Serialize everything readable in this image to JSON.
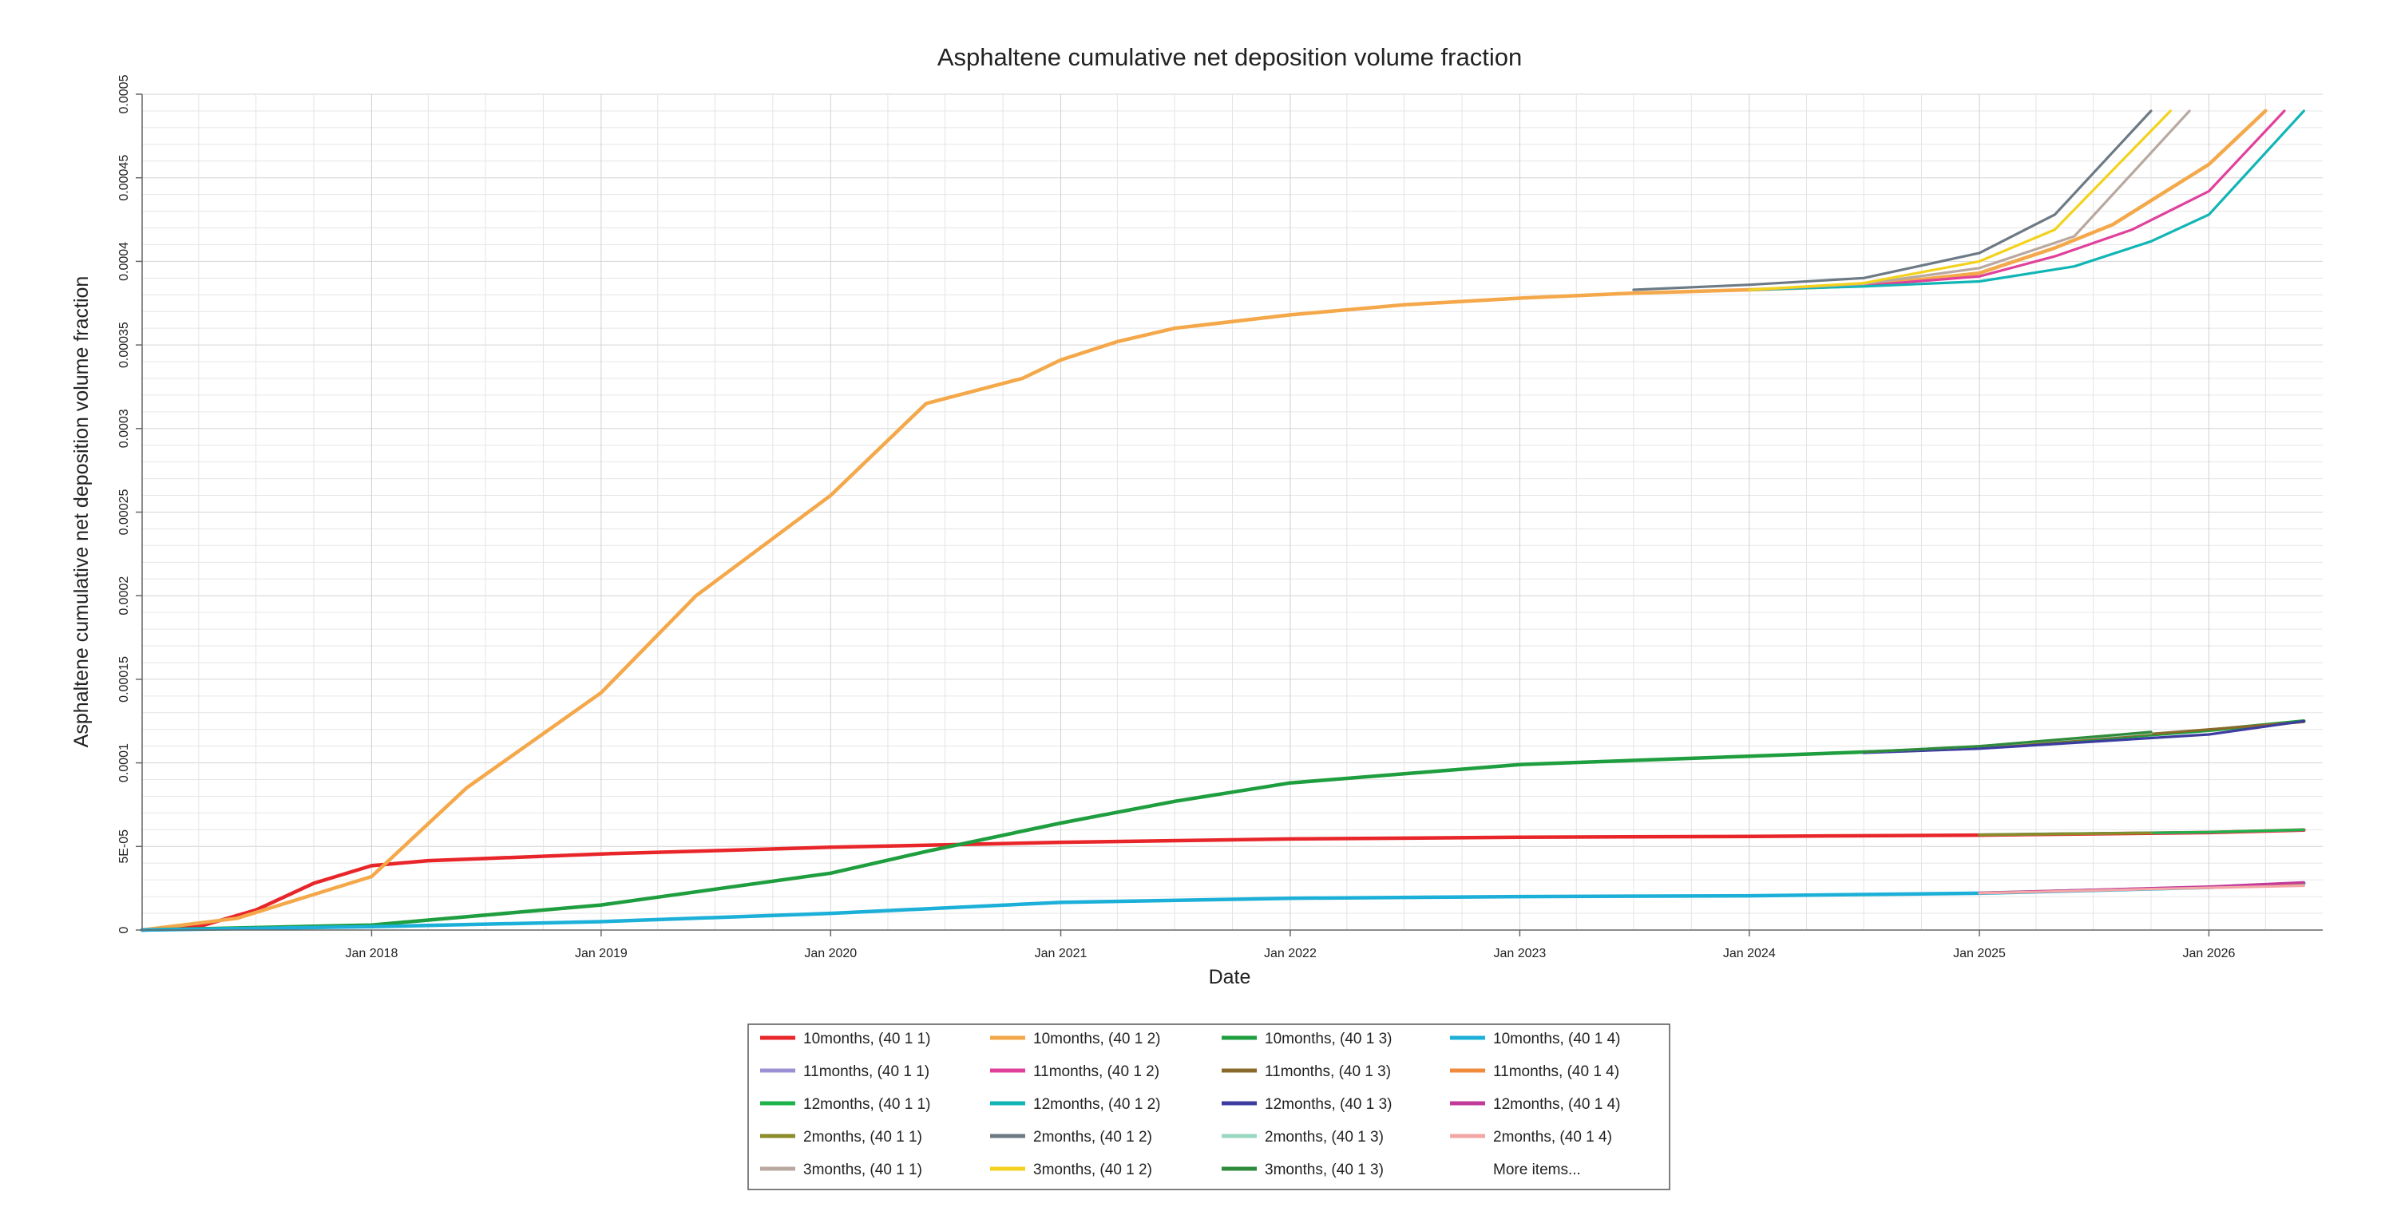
{
  "chart_data": {
    "type": "line",
    "title": "Asphaltene cumulative net deposition volume fraction",
    "xlabel": "Date",
    "ylabel": "Asphaltene cumulative net deposition volume fraction",
    "xlim": [
      "2017-01-01",
      "2026-07-01"
    ],
    "ylim": [
      0,
      0.0005
    ],
    "x_ticks": [
      "Jan 2018",
      "Jan 2019",
      "Jan 2020",
      "Jan 2021",
      "Jan 2022",
      "Jan 2023",
      "Jan 2024",
      "Jan 2025",
      "Jan 2026"
    ],
    "x_tick_dates": [
      "2018-01-01",
      "2019-01-01",
      "2020-01-01",
      "2021-01-01",
      "2022-01-01",
      "2023-01-01",
      "2024-01-01",
      "2025-01-01",
      "2026-01-01"
    ],
    "y_ticks": [
      {
        "value": 0,
        "label": "0"
      },
      {
        "value": 5e-05,
        "label": "5E-05"
      },
      {
        "value": 0.0001,
        "label": "0.0001"
      },
      {
        "value": 0.00015,
        "label": "0.00015"
      },
      {
        "value": 0.0002,
        "label": "0.0002"
      },
      {
        "value": 0.00025,
        "label": "0.00025"
      },
      {
        "value": 0.0003,
        "label": "0.0003"
      },
      {
        "value": 0.00035,
        "label": "0.00035"
      },
      {
        "value": 0.0004,
        "label": "0.0004"
      },
      {
        "value": 0.00045,
        "label": "0.00045"
      },
      {
        "value": 0.0005,
        "label": "0.0005"
      }
    ],
    "grid": true,
    "legend_position": "bottom",
    "legend_more_label": "More items...",
    "series": [
      {
        "name": "10months, (40 1 1)",
        "color": "#e8262a",
        "x": [
          "2017-01-01",
          "2017-04-01",
          "2017-07-01",
          "2017-10-01",
          "2018-01-01",
          "2018-04-01",
          "2018-07-01",
          "2019-01-01",
          "2020-01-01",
          "2021-01-01",
          "2022-01-01",
          "2023-01-01",
          "2024-01-01",
          "2025-01-01",
          "2026-01-01",
          "2026-06-01"
        ],
        "y": [
          0,
          2e-06,
          1.2e-05,
          2.8e-05,
          3.85e-05,
          4.15e-05,
          4.28e-05,
          4.55e-05,
          4.95e-05,
          5.25e-05,
          5.45e-05,
          5.55e-05,
          5.6e-05,
          5.68e-05,
          5.83e-05,
          5.98e-05
        ]
      },
      {
        "name": "10months, (40 1 2)",
        "color": "#f4a84a",
        "x": [
          "2017-01-01",
          "2017-06-01",
          "2018-01-01",
          "2018-06-01",
          "2019-01-01",
          "2019-06-01",
          "2020-01-01",
          "2020-06-01",
          "2020-11-01",
          "2021-01-01",
          "2021-04-01",
          "2021-07-01",
          "2022-01-01",
          "2022-07-01",
          "2023-01-01",
          "2023-07-01",
          "2024-01-01",
          "2024-07-01",
          "2025-01-01",
          "2025-05-01",
          "2025-08-01",
          "2026-01-01",
          "2026-04-01"
        ],
        "y": [
          0,
          7e-06,
          3.2e-05,
          8.5e-05,
          0.000142,
          0.0002,
          0.00026,
          0.000315,
          0.00033,
          0.000341,
          0.000352,
          0.00036,
          0.000368,
          0.000374,
          0.000378,
          0.000381,
          0.000383,
          0.0003855,
          0.000393,
          0.000408,
          0.000422,
          0.000458,
          0.00049
        ]
      },
      {
        "name": "10months, (40 1 3)",
        "color": "#1e9e3e",
        "x": [
          "2017-01-01",
          "2018-01-01",
          "2019-01-01",
          "2020-01-01",
          "2020-06-01",
          "2021-01-01",
          "2021-07-01",
          "2022-01-01",
          "2023-01-01",
          "2024-01-01",
          "2024-07-01",
          "2025-01-01",
          "2026-01-01",
          "2026-06-01"
        ],
        "y": [
          0,
          3e-06,
          1.5e-05,
          3.4e-05,
          4.7e-05,
          6.4e-05,
          7.7e-05,
          8.8e-05,
          9.9e-05,
          0.000104,
          0.0001065,
          0.000109,
          0.0001195,
          0.000125
        ]
      },
      {
        "name": "10months, (40 1 4)",
        "color": "#1cb0d9",
        "x": [
          "2017-01-01",
          "2018-01-01",
          "2019-01-01",
          "2020-01-01",
          "2021-01-01",
          "2022-01-01",
          "2023-01-01",
          "2024-01-01",
          "2025-01-01",
          "2026-01-01",
          "2026-06-01"
        ],
        "y": [
          0,
          2e-06,
          5e-06,
          1e-05,
          1.65e-05,
          1.9e-05,
          2e-05,
          2.05e-05,
          2.2e-05,
          2.55e-05,
          2.8e-05
        ]
      },
      {
        "name": "11months, (40 1 1)",
        "color": "#9b8fd6",
        "x": [
          "2025-01-01",
          "2026-01-01",
          "2026-06-01"
        ],
        "y": [
          5.69e-05,
          5.85e-05,
          5.99e-05
        ]
      },
      {
        "name": "11months, (40 1 2)",
        "color": "#e0409b",
        "x": [
          "2024-01-01",
          "2024-07-01",
          "2025-01-01",
          "2025-05-01",
          "2025-09-01",
          "2026-01-01",
          "2026-05-01"
        ],
        "y": [
          0.000383,
          0.0003855,
          0.000391,
          0.000403,
          0.000419,
          0.000442,
          0.00049
        ]
      },
      {
        "name": "11months, (40 1 3)",
        "color": "#8a6a2a",
        "x": [
          "2024-07-01",
          "2025-01-01",
          "2026-01-01",
          "2026-06-01"
        ],
        "y": [
          0.0001065,
          0.0001095,
          0.00012,
          0.0001245
        ]
      },
      {
        "name": "11months, (40 1 4)",
        "color": "#f08a3c",
        "x": [
          "2025-01-01",
          "2026-01-01",
          "2026-06-01"
        ],
        "y": [
          2.22e-05,
          2.58e-05,
          2.82e-05
        ]
      },
      {
        "name": "12months, (40 1 1)",
        "color": "#1db34a",
        "x": [
          "2025-01-01",
          "2026-01-01",
          "2026-06-01"
        ],
        "y": [
          5.7e-05,
          5.86e-05,
          6e-05
        ]
      },
      {
        "name": "12months, (40 1 2)",
        "color": "#11b5b5",
        "x": [
          "2024-01-01",
          "2024-07-01",
          "2025-01-01",
          "2025-06-01",
          "2025-10-01",
          "2026-01-01",
          "2026-06-01"
        ],
        "y": [
          0.000383,
          0.000385,
          0.000388,
          0.000397,
          0.000412,
          0.000428,
          0.00049
        ]
      },
      {
        "name": "12months, (40 1 3)",
        "color": "#3c3ca0",
        "x": [
          "2024-07-01",
          "2025-01-01",
          "2026-01-01",
          "2026-06-01"
        ],
        "y": [
          0.000106,
          0.0001085,
          0.000117,
          0.000125
        ]
      },
      {
        "name": "12months, (40 1 4)",
        "color": "#c23a9a",
        "x": [
          "2025-01-01",
          "2026-01-01",
          "2026-06-01"
        ],
        "y": [
          2.22e-05,
          2.6e-05,
          2.85e-05
        ]
      },
      {
        "name": "2months, (40 1 1)",
        "color": "#8c8c2a",
        "x": [
          "2025-01-01",
          "2025-10-01"
        ],
        "y": [
          5.69e-05,
          5.8e-05
        ]
      },
      {
        "name": "2months, (40 1 2)",
        "color": "#6c7a85",
        "x": [
          "2023-07-01",
          "2024-01-01",
          "2024-07-01",
          "2025-01-01",
          "2025-05-01",
          "2025-10-01"
        ],
        "y": [
          0.000383,
          0.000386,
          0.00039,
          0.000405,
          0.000428,
          0.00049
        ]
      },
      {
        "name": "2months, (40 1 3)",
        "color": "#9ad9c0",
        "x": [
          "2024-07-01",
          "2025-01-01",
          "2025-10-01"
        ],
        "y": [
          0.0001065,
          0.00011,
          0.000118
        ]
      },
      {
        "name": "2months, (40 1 4)",
        "color": "#f4a6a6",
        "x": [
          "2025-01-01",
          "2025-10-01",
          "2026-06-01"
        ],
        "y": [
          2.2e-05,
          2.45e-05,
          2.65e-05
        ]
      },
      {
        "name": "3months, (40 1 1)",
        "color": "#b8a8a0",
        "x": [
          "2024-01-01",
          "2024-07-01",
          "2025-01-01",
          "2025-06-01",
          "2025-12-01"
        ],
        "y": [
          0.000383,
          0.0003865,
          0.000396,
          0.000415,
          0.00049
        ]
      },
      {
        "name": "3months, (40 1 2)",
        "color": "#f2d21c",
        "x": [
          "2024-01-01",
          "2024-07-01",
          "2025-01-01",
          "2025-05-01",
          "2025-11-01"
        ],
        "y": [
          0.000383,
          0.000387,
          0.0004,
          0.000419,
          0.00049
        ]
      },
      {
        "name": "3months, (40 1 3)",
        "color": "#2e8b3a",
        "x": [
          "2024-07-01",
          "2025-01-01",
          "2025-10-01"
        ],
        "y": [
          0.0001065,
          0.00011,
          0.0001185
        ]
      }
    ]
  }
}
